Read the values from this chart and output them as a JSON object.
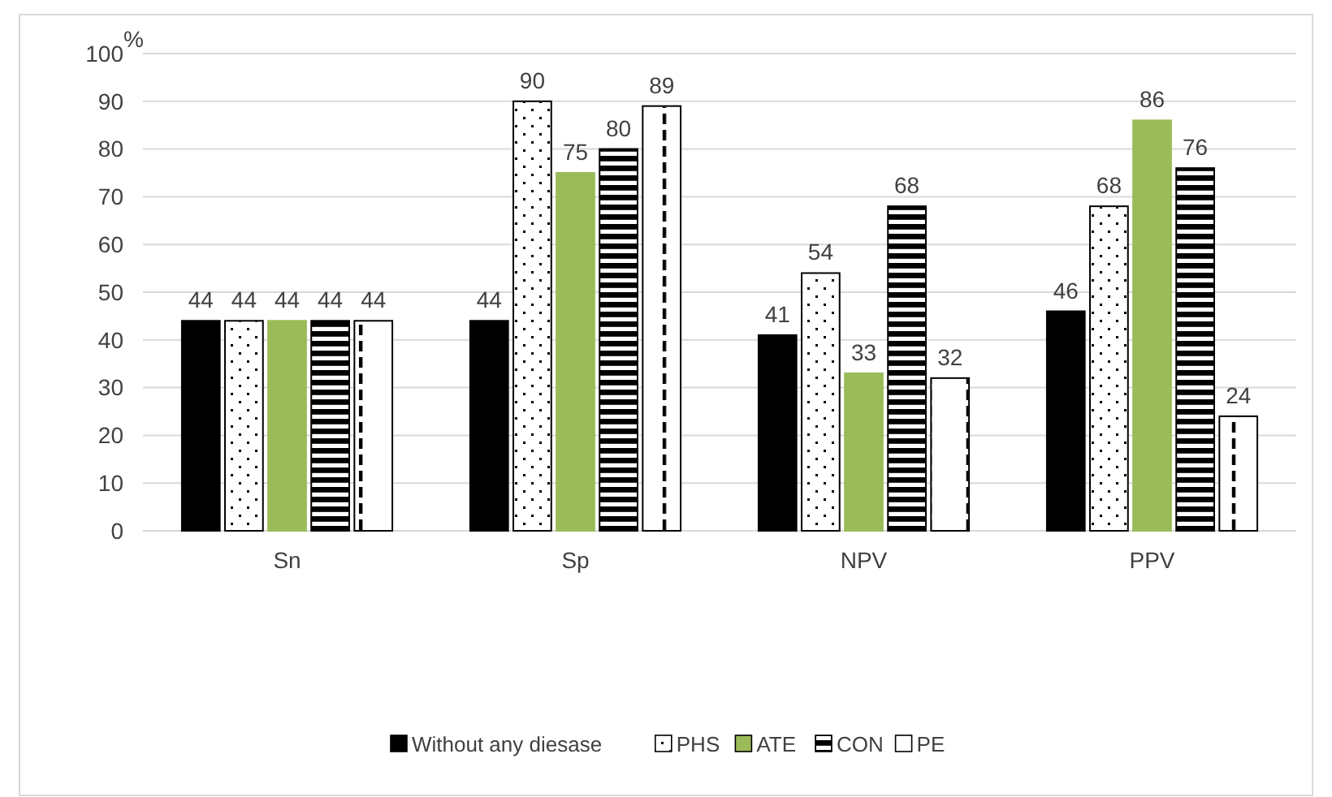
{
  "chart_data": {
    "type": "bar",
    "ylabel": "%",
    "categories": [
      "Sn",
      "Sp",
      "NPV",
      "PPV"
    ],
    "series": [
      {
        "name": "Without any diesase",
        "color": "#000000",
        "values": [
          44,
          44,
          41,
          46
        ]
      },
      {
        "name": "PHS",
        "color": "#ffffff",
        "values": [
          44,
          90,
          54,
          68
        ]
      },
      {
        "name": "ATE",
        "color": "#9bbb59",
        "values": [
          44,
          75,
          33,
          86
        ]
      },
      {
        "name": "CON",
        "color": "#000000",
        "values": [
          44,
          80,
          68,
          76
        ]
      },
      {
        "name": "PE",
        "color": "#ffffff",
        "values": [
          44,
          89,
          32,
          24
        ]
      }
    ],
    "ylim": [
      0,
      100
    ],
    "yticks": [
      0,
      10,
      20,
      30,
      40,
      50,
      60,
      70,
      80,
      90,
      100
    ],
    "grid": "y",
    "legend": "bottom",
    "data_labels": true
  }
}
